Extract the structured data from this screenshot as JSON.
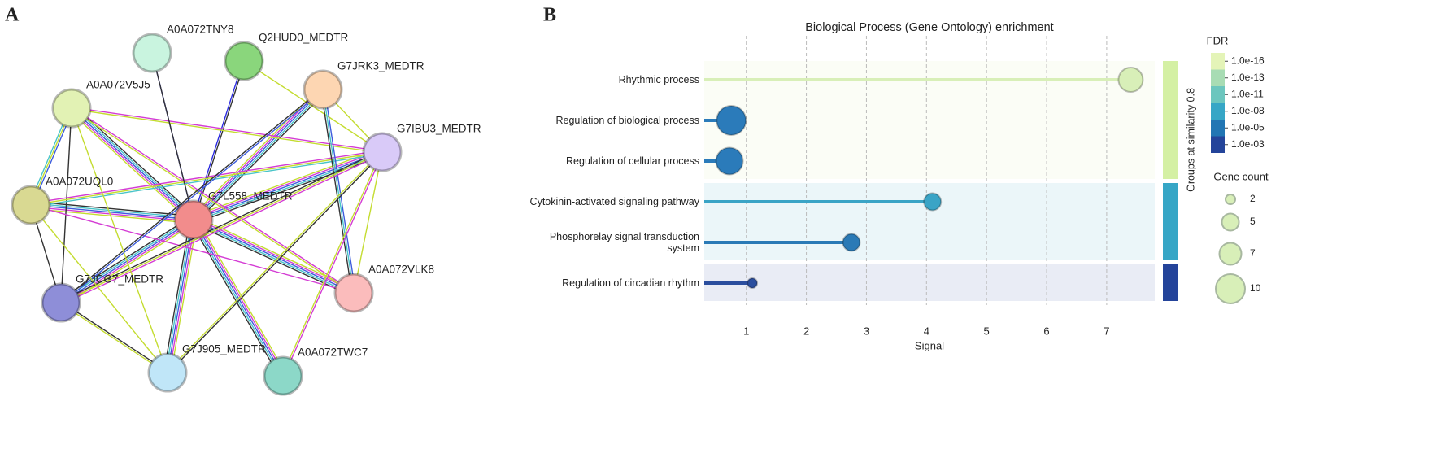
{
  "panels": {
    "a": "A",
    "b": "B"
  },
  "network": {
    "nodes": [
      {
        "label": "A0A072TNY8",
        "color": "#c9f4df"
      },
      {
        "label": "Q2HUD0_MEDTR",
        "color": "#8ad67c"
      },
      {
        "label": "G7JRK3_MEDTR",
        "color": "#fdd6b2"
      },
      {
        "label": "A0A072V5J5",
        "color": "#e2f2b4"
      },
      {
        "label": "G7IBU3_MEDTR",
        "color": "#d9caf8"
      },
      {
        "label": "A0A072UQL0",
        "color": "#d9d992"
      },
      {
        "label": "G7L558_MEDTR",
        "color": "#f28c8c"
      },
      {
        "label": "A0A072VLK8",
        "color": "#fbbcbc"
      },
      {
        "label": "G7JCG7_MEDTR",
        "color": "#8e8ed8"
      },
      {
        "label": "G7J905_MEDTR",
        "color": "#c0e6f8"
      },
      {
        "label": "A0A072TWC7",
        "color": "#8cd8c8"
      }
    ]
  },
  "chart_data": {
    "type": "lollipop",
    "title": "Biological Process (Gene Ontology) enrichment",
    "x_label": "Signal",
    "categories": [
      "Rhythmic process",
      "Regulation of biological process",
      "Regulation of cellular process",
      "Cytokinin-activated signaling pathway",
      "Phosphorelay signal transduction system",
      "Regulation of circadian rhythm"
    ],
    "values": [
      7.4,
      0.75,
      0.72,
      4.1,
      2.75,
      1.1
    ],
    "sizes": [
      8,
      10,
      9,
      5,
      5,
      2
    ],
    "colors": [
      "#d8efb8",
      "#2b7bba",
      "#2b7bba",
      "#3aa4c6",
      "#2a7ab6",
      "#2b4e9e"
    ],
    "group_colors": [
      "#d4f0a4",
      "#d4f0a4",
      "#d4f0a4",
      "#36a6c6",
      "#36a6c6",
      "#24449a"
    ],
    "group_label": "Groups at similarity 0.8",
    "xlim": [
      0.3,
      7.8
    ],
    "xticks": [
      1,
      2,
      3,
      4,
      5,
      6,
      7
    ],
    "grid": true,
    "color_legend": {
      "title": "FDR",
      "ticks": [
        {
          "value": 1e-16,
          "label": "1.0e-16"
        },
        {
          "value": 1e-13,
          "label": "1.0e-13"
        },
        {
          "value": 1e-11,
          "label": "1.0e-11"
        },
        {
          "value": 1e-08,
          "label": "1.0e-08"
        },
        {
          "value": 1e-05,
          "label": "1.0e-05"
        },
        {
          "value": 0.001,
          "label": "1.0e-03"
        }
      ],
      "colors": [
        "#e4f4b8",
        "#a8dcb4",
        "#6cc6be",
        "#36a6c6",
        "#2276b4",
        "#24449a"
      ]
    },
    "size_legend": {
      "title": "Gene count",
      "values": [
        2,
        5,
        7,
        10
      ]
    }
  }
}
